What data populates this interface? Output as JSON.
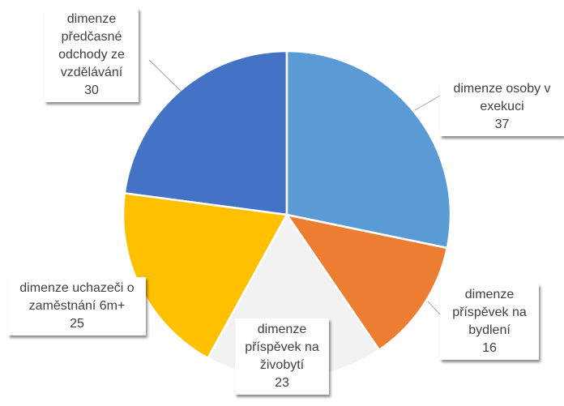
{
  "chart_data": {
    "type": "pie",
    "categories": [
      "dimenze osoby v exekuci",
      "dimenze příspěvek na bydlení",
      "dimenze příspěvek na živobytí",
      "dimenze uchazeči o zaměstnání 6m+",
      "dimenze předčasné odchody ze vzdělávání"
    ],
    "values": [
      37,
      16,
      23,
      25,
      30
    ],
    "colors": [
      "#5b9bd5",
      "#ed7d31",
      "#f2f2f2",
      "#ffc000",
      "#4472c4"
    ]
  }
}
